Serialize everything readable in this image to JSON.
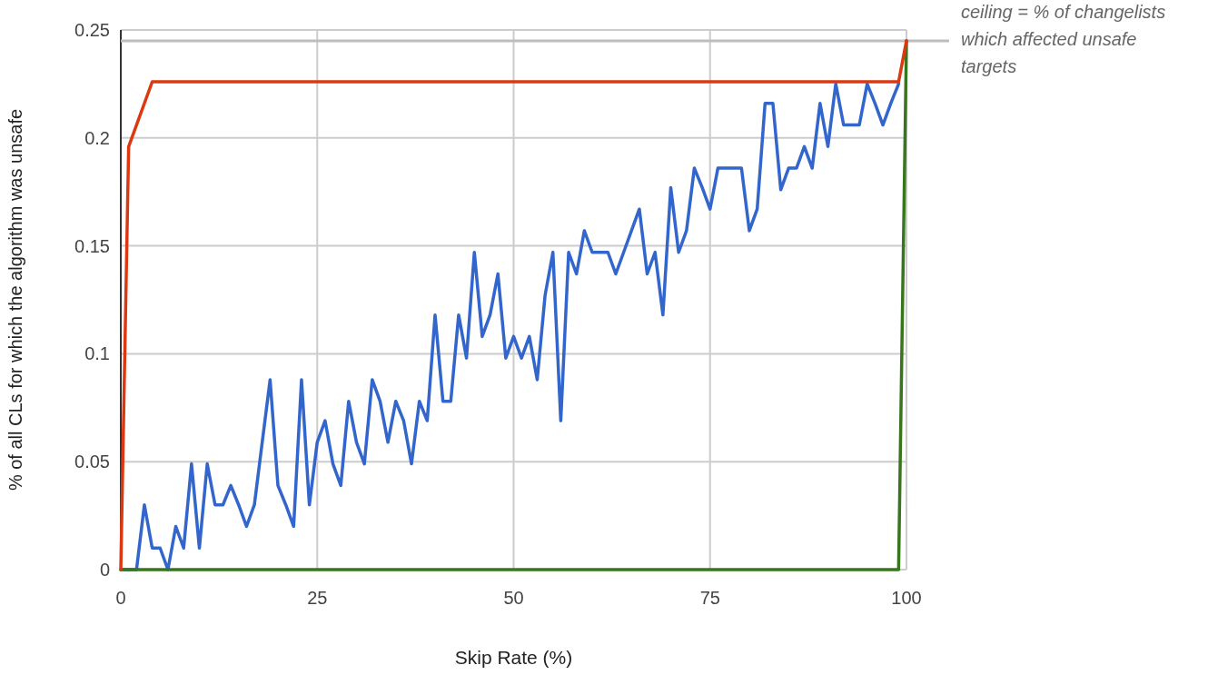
{
  "chart_data": {
    "type": "line",
    "xlabel": "Skip Rate (%)",
    "ylabel": "% of all CLs for which the algorithm was unsafe",
    "xlim": [
      0,
      100
    ],
    "xticks": [
      0,
      25,
      50,
      75,
      100
    ],
    "ylim": [
      0,
      0.25
    ],
    "yticks": [
      0,
      0.05,
      0.1,
      0.15,
      0.2,
      0.25
    ],
    "grid": true,
    "ref_lines": [
      {
        "axis": "y",
        "value": 0.245,
        "label": "ceiling = % of changelists which affected unsafe targets",
        "color": "#bdbdbd"
      }
    ],
    "series": [
      {
        "color": "#3366cc",
        "x": [
          0,
          1,
          2,
          3,
          4,
          5,
          6,
          7,
          8,
          9,
          10,
          11,
          12,
          13,
          14,
          15,
          16,
          17,
          18,
          19,
          20,
          21,
          22,
          23,
          24,
          25,
          26,
          27,
          28,
          29,
          30,
          31,
          32,
          33,
          34,
          35,
          36,
          37,
          38,
          39,
          40,
          41,
          42,
          43,
          44,
          45,
          46,
          47,
          48,
          49,
          50,
          51,
          52,
          53,
          54,
          55,
          56,
          57,
          58,
          59,
          60,
          61,
          62,
          63,
          64,
          65,
          66,
          67,
          68,
          69,
          70,
          71,
          72,
          73,
          74,
          75,
          76,
          77,
          78,
          79,
          80,
          81,
          82,
          83,
          84,
          85,
          86,
          87,
          88,
          89,
          90,
          91,
          92,
          93,
          94,
          95,
          96,
          97,
          98,
          99
        ],
        "values": [
          0,
          0,
          0,
          0.03,
          0.01,
          0.01,
          0,
          0.02,
          0.01,
          0.049,
          0.01,
          0.049,
          0.03,
          0.03,
          0.039,
          0.03,
          0.02,
          0.03,
          0.059,
          0.088,
          0.039,
          0.03,
          0.02,
          0.088,
          0.03,
          0.059,
          0.069,
          0.049,
          0.039,
          0.078,
          0.059,
          0.049,
          0.088,
          0.078,
          0.059,
          0.078,
          0.069,
          0.049,
          0.078,
          0.069,
          0.118,
          0.078,
          0.078,
          0.118,
          0.098,
          0.147,
          0.108,
          0.118,
          0.137,
          0.098,
          0.108,
          0.098,
          0.108,
          0.088,
          0.127,
          0.147,
          0.069,
          0.147,
          0.137,
          0.157,
          0.147,
          0.147,
          0.147,
          0.137,
          0.147,
          0.157,
          0.167,
          0.137,
          0.147,
          0.118,
          0.177,
          0.147,
          0.157,
          0.186,
          0.177,
          0.167,
          0.186,
          0.186,
          0.186,
          0.186,
          0.157,
          0.167,
          0.216,
          0.216,
          0.176,
          0.186,
          0.186,
          0.196,
          0.186,
          0.216,
          0.196,
          0.225,
          0.206,
          0.206,
          0.206,
          0.225,
          0.216,
          0.206,
          0.216,
          0.225
        ]
      },
      {
        "color": "#38761d",
        "x": [
          0,
          99,
          100
        ],
        "values": [
          0,
          0,
          0.245
        ]
      },
      {
        "color": "#dc3912",
        "x": [
          0,
          1,
          4,
          99,
          100
        ],
        "values": [
          0,
          0.196,
          0.226,
          0.226,
          0.245
        ]
      }
    ]
  }
}
